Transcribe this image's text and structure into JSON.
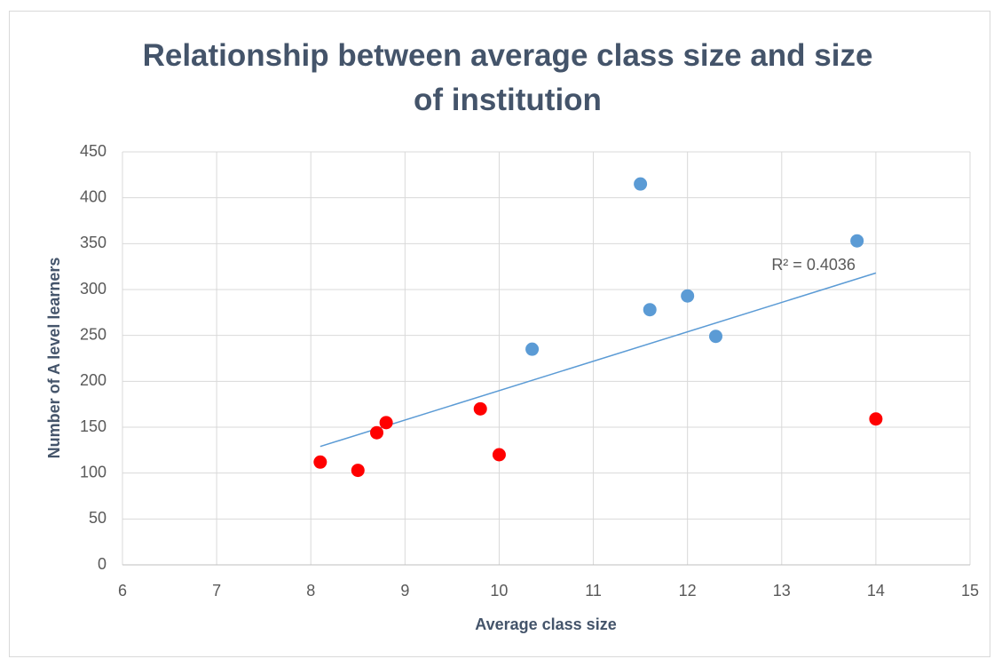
{
  "chart_data": {
    "type": "scatter",
    "title": "Relationship between average class size and size of institution",
    "xlabel": "Average class size",
    "ylabel": "Number of A level learners",
    "xlim": [
      6,
      15
    ],
    "xticks": [
      6,
      7,
      8,
      9,
      10,
      11,
      12,
      13,
      14,
      15
    ],
    "ylim": [
      0,
      450
    ],
    "yticks": [
      0,
      50,
      100,
      150,
      200,
      250,
      300,
      350,
      400,
      450
    ],
    "grid": true,
    "series": [
      {
        "color": "#ff0000",
        "x": [
          8.1,
          8.5,
          8.7,
          8.8,
          9.8,
          10.0,
          14.0
        ],
        "values": [
          112,
          103,
          144,
          155,
          170,
          120,
          159
        ]
      },
      {
        "color": "#5b9bd5",
        "x": [
          10.35,
          11.5,
          11.6,
          12.0,
          12.3,
          13.8
        ],
        "values": [
          235,
          415,
          278,
          293,
          249,
          353
        ]
      }
    ],
    "trendline": {
      "color": "#5b9bd5",
      "x": [
        8.1,
        14.0
      ],
      "y": [
        129,
        318
      ]
    },
    "annotations": [
      "R² = 0.4036"
    ]
  }
}
